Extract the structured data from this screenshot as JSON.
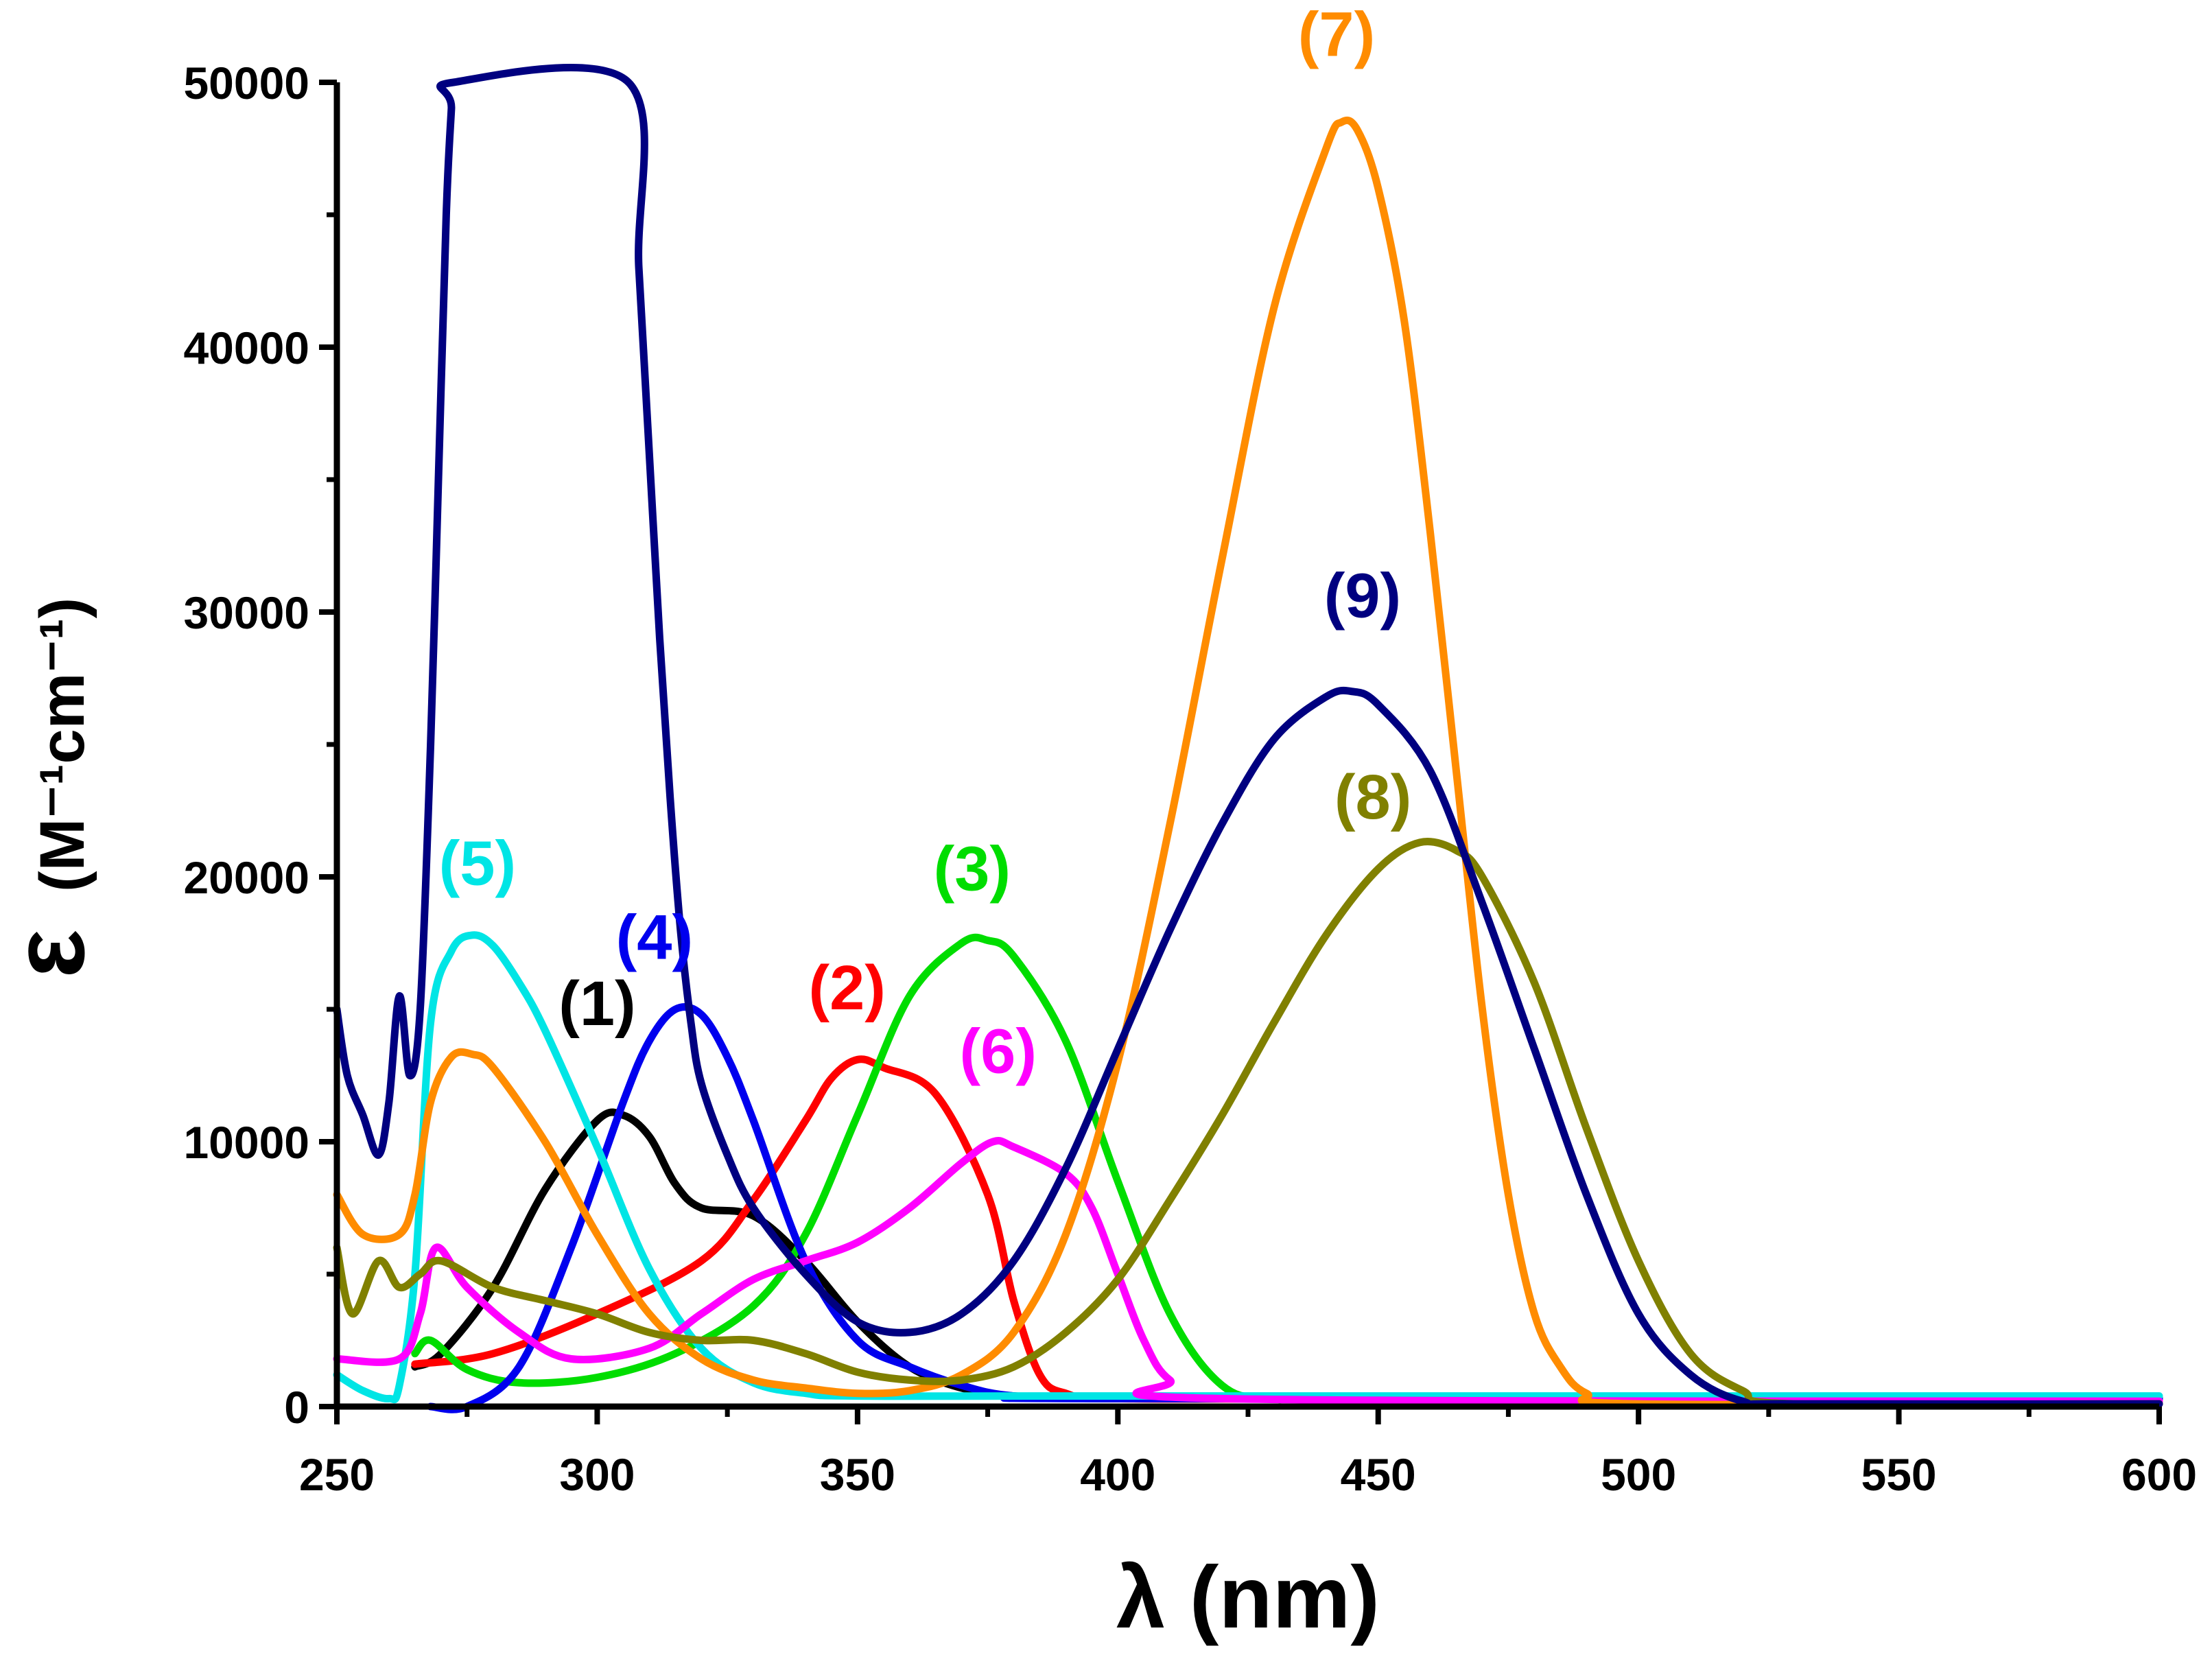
{
  "chart_data": {
    "type": "line",
    "xlabel": "λ (nm)",
    "ylabel_symbol": "ε",
    "ylabel_unit": "(M⁻¹cm⁻¹)",
    "xlim": [
      250,
      600
    ],
    "ylim": [
      0,
      50000
    ],
    "xticks": [
      250,
      300,
      350,
      400,
      450,
      500,
      550,
      600
    ],
    "xtick_labels": [
      "250",
      "300",
      "350",
      "400",
      "450",
      "500",
      "550",
      "600"
    ],
    "yticks": [
      0,
      10000,
      20000,
      30000,
      40000,
      50000
    ],
    "ytick_labels": [
      "0",
      "10000",
      "20000",
      "30000",
      "40000",
      "50000"
    ],
    "series": [
      {
        "name": "(1)",
        "color": "#000000",
        "label_x": 300,
        "label_y": 14400,
        "x": [
          265,
          270,
          280,
          290,
          300,
          305,
          310,
          315,
          320,
          330,
          340,
          350,
          360,
          370,
          380,
          400,
          450,
          600
        ],
        "y": [
          1500,
          2000,
          4500,
          8200,
          10800,
          11000,
          10200,
          8400,
          7500,
          7200,
          5500,
          3200,
          1500,
          700,
          400,
          300,
          300,
          300
        ]
      },
      {
        "name": "(2)",
        "color": "#ff0000",
        "label_x": 348,
        "label_y": 15000,
        "x": [
          265,
          280,
          300,
          320,
          330,
          340,
          345,
          350,
          355,
          365,
          375,
          380,
          385,
          390,
          400,
          450,
          600
        ],
        "y": [
          1600,
          2000,
          3500,
          5500,
          7800,
          10800,
          12400,
          13100,
          12800,
          11800,
          8000,
          4000,
          1200,
          500,
          300,
          300,
          300
        ]
      },
      {
        "name": "(3)",
        "color": "#00dd00",
        "label_x": 372,
        "label_y": 19500,
        "x": [
          265,
          268,
          275,
          285,
          300,
          315,
          330,
          340,
          350,
          360,
          370,
          375,
          380,
          390,
          400,
          410,
          420,
          430,
          450,
          600
        ],
        "y": [
          2000,
          2500,
          1400,
          900,
          1100,
          2000,
          3800,
          6500,
          11000,
          15500,
          17500,
          17600,
          17000,
          13800,
          8500,
          3500,
          800,
          300,
          300,
          300
        ]
      },
      {
        "name": "(4)",
        "color": "#0000ee",
        "label_x": 311,
        "label_y": 16900,
        "x": [
          268,
          275,
          285,
          295,
          305,
          310,
          315,
          320,
          325,
          330,
          340,
          350,
          360,
          370,
          380,
          400,
          600
        ],
        "y": [
          0,
          0,
          1500,
          6000,
          11500,
          13800,
          15000,
          14800,
          13200,
          10800,
          5500,
          2500,
          1500,
          800,
          400,
          300,
          300
        ]
      },
      {
        "name": "(5)",
        "color": "#00e5e5",
        "label_x": 277,
        "label_y": 19700,
        "x": [
          250,
          255,
          260,
          262,
          265,
          268,
          272,
          276,
          280,
          285,
          290,
          300,
          310,
          320,
          330,
          340,
          350,
          400,
          600
        ],
        "y": [
          1200,
          600,
          300,
          800,
          5000,
          14500,
          17200,
          17800,
          17400,
          16000,
          14200,
          9800,
          5200,
          2200,
          900,
          500,
          400,
          400,
          400
        ]
      },
      {
        "name": "(6)",
        "color": "#ff00ff",
        "label_x": 377,
        "label_y": 12600,
        "x": [
          250,
          262,
          266,
          269,
          275,
          285,
          295,
          310,
          320,
          330,
          340,
          350,
          360,
          370,
          376,
          380,
          390,
          395,
          400,
          405,
          410,
          420,
          600
        ],
        "y": [
          1800,
          1800,
          3500,
          6000,
          4500,
          2800,
          1800,
          2200,
          3500,
          4800,
          5500,
          6200,
          7500,
          9200,
          10000,
          9800,
          8800,
          7500,
          5000,
          2500,
          1000,
          300,
          200
        ]
      },
      {
        "name": "(7)",
        "color": "#ff8c00",
        "label_x": 442,
        "label_y": 51000,
        "x": [
          250,
          255,
          262,
          265,
          268,
          272,
          276,
          280,
          290,
          300,
          310,
          320,
          330,
          340,
          350,
          360,
          370,
          380,
          390,
          400,
          410,
          420,
          430,
          440,
          443,
          446,
          450,
          455,
          460,
          465,
          470,
          475,
          480,
          485,
          490,
          500,
          600
        ],
        "y": [
          8000,
          6500,
          6500,
          8000,
          11500,
          13200,
          13300,
          12800,
          10000,
          6500,
          3500,
          1800,
          1000,
          700,
          500,
          600,
          1200,
          2800,
          6500,
          13000,
          22000,
          32000,
          41500,
          47500,
          48500,
          48200,
          46000,
          41000,
          33000,
          24000,
          15000,
          8000,
          3500,
          1500,
          500,
          100,
          100
        ]
      },
      {
        "name": "(8)",
        "color": "#808000",
        "label_x": 449,
        "label_y": 22200,
        "x": [
          250,
          253,
          258,
          262,
          266,
          270,
          280,
          290,
          300,
          310,
          320,
          330,
          340,
          350,
          360,
          370,
          380,
          390,
          400,
          410,
          420,
          430,
          440,
          450,
          458,
          465,
          470,
          480,
          490,
          500,
          510,
          520,
          530,
          600
        ],
        "y": [
          6000,
          3500,
          5500,
          4500,
          5000,
          5500,
          4500,
          4000,
          3500,
          2800,
          2500,
          2500,
          2000,
          1300,
          1000,
          1000,
          1500,
          2800,
          4800,
          7800,
          11000,
          14500,
          17800,
          20300,
          21300,
          21000,
          20000,
          16000,
          10500,
          5500,
          2000,
          600,
          100,
          100
        ]
      },
      {
        "name": "(9)",
        "color": "#000080",
        "label_x": 447,
        "label_y": 29800,
        "x": [
          250,
          252,
          255,
          258,
          260,
          262,
          264,
          266,
          268,
          269.5,
          271,
          272,
          272.4,
          306,
          308,
          310,
          312,
          314,
          316,
          318,
          320,
          325,
          330,
          340,
          350,
          360,
          370,
          380,
          390,
          400,
          410,
          420,
          430,
          440,
          445,
          450,
          460,
          470,
          480,
          490,
          500,
          510,
          520,
          530,
          600
        ],
        "y": [
          15000,
          12500,
          11000,
          9500,
          11500,
          15500,
          12500,
          15000,
          25000,
          35000,
          45000,
          49000,
          50000,
          50000,
          43000,
          36000,
          29000,
          23000,
          18000,
          14500,
          12200,
          9500,
          7500,
          5000,
          3200,
          2800,
          3500,
          5500,
          9000,
          13500,
          18000,
          22000,
          25200,
          26800,
          27000,
          26500,
          24000,
          19000,
          13500,
          8000,
          3500,
          1200,
          200,
          100,
          100
        ]
      }
    ]
  }
}
